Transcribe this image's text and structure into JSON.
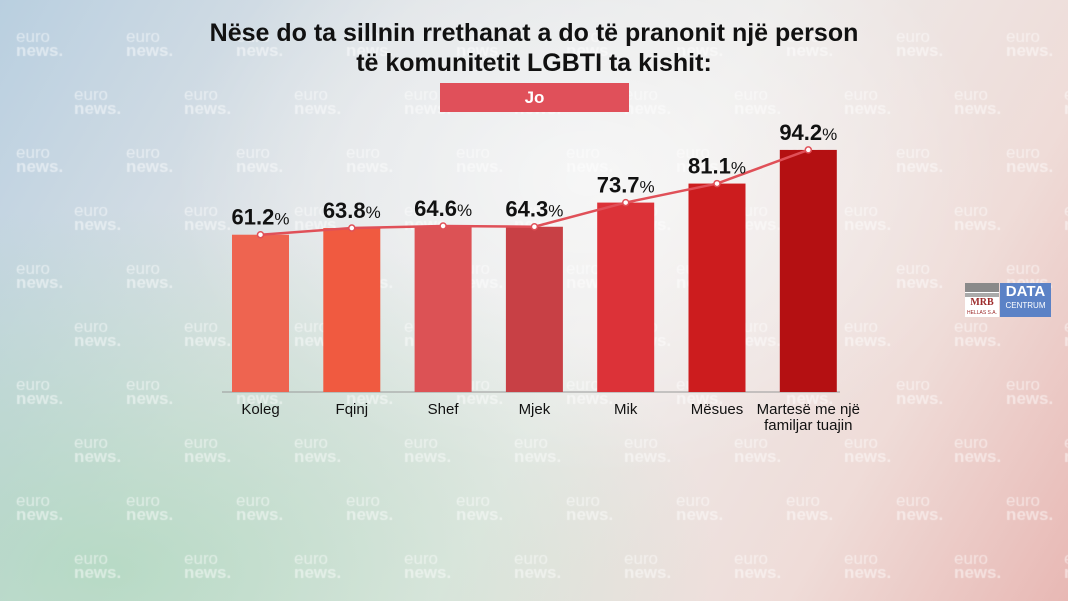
{
  "title_line1": "Nëse do ta sillnin rrethanat a do të pranonit një person",
  "title_line2": "të komunitetit LGBTI ta kishit:",
  "watermark": {
    "top": "euro",
    "bottom": "news."
  },
  "logo": {
    "mrb": "MRB",
    "mrb_sub": "HELLAS S.A.",
    "data": "DATA",
    "centrum": "CENTRUM"
  },
  "chart_data": {
    "type": "bar",
    "title": "Nëse do ta sillnin rrethanat a do të pranonit një person të komunitetit LGBTI ta kishit:",
    "legend": "Jo",
    "categories": [
      "Koleg",
      "Fqinj",
      "Shef",
      "Mjek",
      "Mik",
      "Mësues",
      [
        "Martesë me një",
        "familjar tuajin"
      ]
    ],
    "values": [
      61.2,
      63.8,
      64.6,
      64.3,
      73.7,
      81.1,
      94.2
    ],
    "labels": [
      "61.2%",
      "63.8%",
      "64.6%",
      "64.3%",
      "73.7%",
      "81.1%",
      "94.2%"
    ],
    "colors": [
      "#ee6450",
      "#f05a40",
      "#dc5255",
      "#c84045",
      "#dc3238",
      "#cc1c1e",
      "#b41012"
    ],
    "line_color": "#e05058",
    "ylim": [
      0,
      100
    ],
    "grid": false,
    "overlay_line": true
  }
}
